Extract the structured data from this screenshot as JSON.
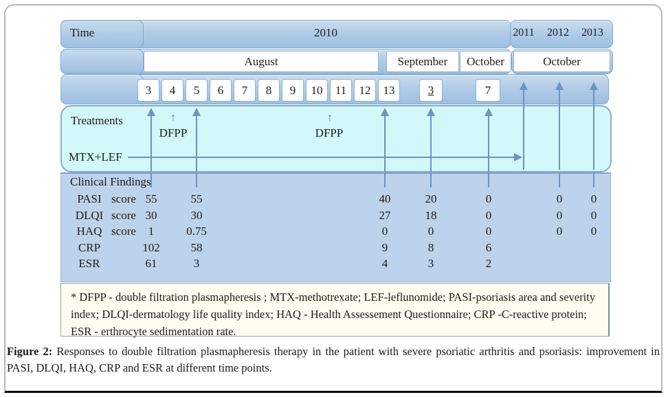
{
  "palette": {
    "band_blue": "#b2cce8",
    "treatments_cyan": "#d2f8fa",
    "findings_blue": "#bdd3ec",
    "footnote_cream": "#fdfdf1",
    "arrow_blue": "#6e93bc"
  },
  "timeline": {
    "time_label": "Time",
    "year_main": "2010",
    "years_later": [
      "2011",
      "2012",
      "2013"
    ],
    "months": {
      "august": "August",
      "september": "September",
      "october_2010": "October",
      "october_later": "October"
    },
    "august_days": [
      "3",
      "4",
      "5",
      "6",
      "7",
      "8",
      "9",
      "10",
      "11",
      "12",
      "13"
    ],
    "september_day": "3",
    "october_day": "7"
  },
  "treatments": {
    "section_label": "Treatments",
    "dfpp_arrow_glyph": "↑",
    "dfpp_label_1": "DFPP",
    "dfpp_label_2": "DFPP",
    "mtx_lef_label": "MTX+LEF"
  },
  "findings": {
    "section_label": "Clinical Findings",
    "rows": [
      {
        "name": "PASI",
        "unit": "score",
        "values": [
          "55",
          "55",
          "40",
          "20",
          "0",
          "0",
          "0"
        ]
      },
      {
        "name": "DLQI",
        "unit": "score",
        "values": [
          "30",
          "30",
          "27",
          "18",
          "0",
          "0",
          "0"
        ]
      },
      {
        "name": "HAQ",
        "unit": "score",
        "values": [
          "1",
          "0.75",
          "0",
          "0",
          "0",
          "0",
          "0"
        ]
      },
      {
        "name": "CRP",
        "unit": "",
        "values": [
          "102",
          "58",
          "9",
          "8",
          "6",
          "",
          ""
        ]
      },
      {
        "name": "ESR",
        "unit": "",
        "values": [
          "61",
          "3",
          "4",
          "3",
          "2",
          "",
          ""
        ]
      }
    ]
  },
  "footnote": "* DFPP - double filtration plasmapheresis ; MTX-methotrexate; LEF-leflunomide; PASI-psoriasis area and severity index; DLQI-dermatology life quality index; HAQ - Health Assessement Questionnaire; CRP -C-reactive protein; ESR - erthrocyte sedimentation rate.",
  "caption": {
    "label": "Figure 2:",
    "text": "Responses to double filtration plasmapheresis therapy in the patient with severe psoriatic arthritis and psoriasis: improvement in PASI, DLQI, HAQ, CRP and ESR at different time points."
  }
}
